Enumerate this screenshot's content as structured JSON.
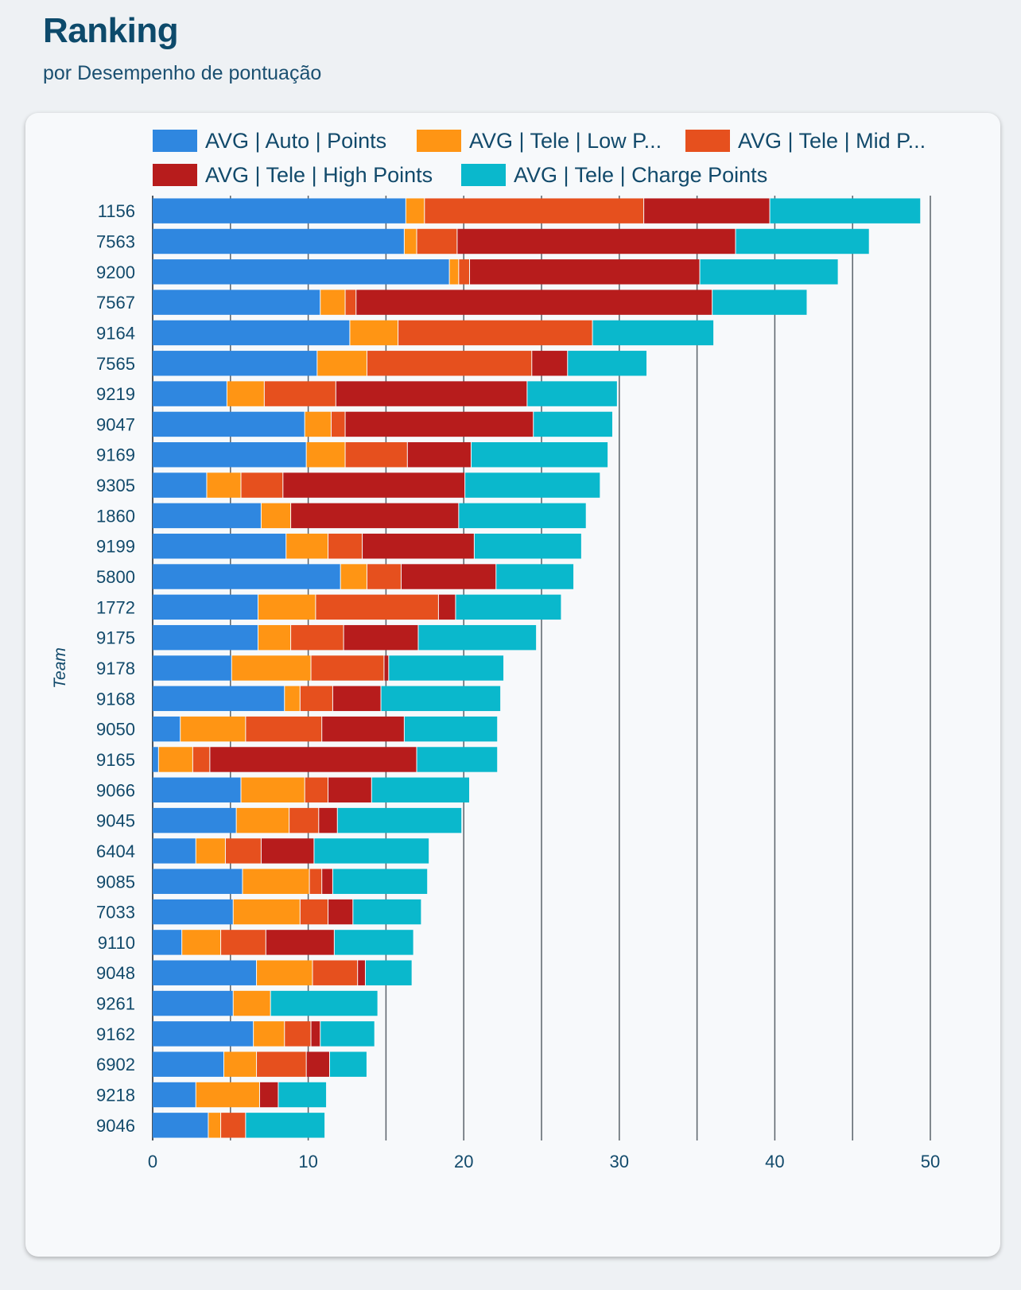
{
  "header": {
    "title": "Ranking",
    "subtitle": "por Desempenho de pontuação"
  },
  "legend": {
    "items": [
      {
        "label": "AVG | Auto | Points",
        "color": "#2f87e0"
      },
      {
        "label": "AVG | Tele | Low P...",
        "color": "#ff9514"
      },
      {
        "label": "AVG | Tele | Mid P...",
        "color": "#e6501e"
      },
      {
        "label": "AVG | Tele | High Points",
        "color": "#b71c1c"
      },
      {
        "label": "AVG | Tele | Charge Points",
        "color": "#0ab8cc"
      }
    ]
  },
  "chart_data": {
    "type": "bar",
    "orientation": "horizontal",
    "stacked": true,
    "title": "",
    "xlabel": "",
    "ylabel": "Team",
    "xlim": [
      0,
      50
    ],
    "x_ticks": [
      0,
      10,
      20,
      30,
      40,
      50
    ],
    "grid": "vertical gridlines at every 5 units",
    "legend_position": "top",
    "categories": [
      "1156",
      "7563",
      "9200",
      "7567",
      "9164",
      "7565",
      "9219",
      "9047",
      "9169",
      "9305",
      "1860",
      "9199",
      "5800",
      "1772",
      "9175",
      "9178",
      "9168",
      "9050",
      "9165",
      "9066",
      "9045",
      "6404",
      "9085",
      "7033",
      "9110",
      "9048",
      "9261",
      "9162",
      "6902",
      "9218",
      "9046"
    ],
    "series": [
      {
        "name": "AVG | Auto | Points",
        "color": "#2f87e0",
        "values": [
          16.3,
          16.2,
          19.1,
          10.8,
          12.7,
          10.6,
          4.8,
          9.8,
          9.9,
          3.5,
          7.0,
          8.6,
          12.1,
          6.8,
          6.8,
          5.1,
          8.5,
          1.8,
          0.4,
          5.7,
          5.4,
          2.8,
          5.8,
          5.2,
          1.9,
          6.7,
          5.2,
          6.5,
          4.6,
          2.8,
          3.6
        ]
      },
      {
        "name": "AVG | Tele | Low P...",
        "color": "#ff9514",
        "values": [
          1.2,
          0.8,
          0.6,
          1.6,
          3.1,
          3.2,
          2.4,
          1.7,
          2.5,
          2.2,
          1.9,
          2.7,
          1.7,
          3.7,
          2.1,
          5.1,
          1.0,
          4.2,
          2.2,
          4.1,
          3.4,
          1.9,
          4.3,
          4.3,
          2.5,
          3.6,
          2.4,
          2.0,
          2.1,
          4.1,
          0.8
        ]
      },
      {
        "name": "AVG | Tele | Mid P...",
        "color": "#e6501e",
        "values": [
          14.1,
          2.6,
          0.7,
          0.7,
          12.5,
          10.6,
          4.6,
          0.9,
          4.0,
          2.7,
          0.0,
          2.2,
          2.2,
          7.9,
          3.4,
          4.7,
          2.1,
          4.9,
          1.1,
          1.5,
          1.9,
          2.3,
          0.8,
          1.8,
          2.9,
          2.9,
          0.0,
          1.7,
          3.2,
          0.0,
          1.6
        ]
      },
      {
        "name": "AVG | Tele | High Points",
        "color": "#b71c1c",
        "values": [
          8.1,
          17.9,
          14.8,
          22.9,
          0.0,
          2.3,
          12.3,
          12.1,
          4.1,
          11.7,
          10.8,
          7.2,
          6.1,
          1.1,
          4.8,
          0.3,
          3.1,
          5.3,
          13.3,
          2.8,
          1.2,
          3.4,
          0.7,
          1.6,
          4.4,
          0.5,
          0.0,
          0.6,
          1.5,
          1.2,
          0.0
        ]
      },
      {
        "name": "AVG | Tele | Charge Points",
        "color": "#0ab8cc",
        "values": [
          9.7,
          8.6,
          8.9,
          6.1,
          7.8,
          5.1,
          5.8,
          5.1,
          8.8,
          8.7,
          8.2,
          6.9,
          5.0,
          6.8,
          7.6,
          7.4,
          7.7,
          6.0,
          5.2,
          6.3,
          8.0,
          7.4,
          6.1,
          4.4,
          5.1,
          3.0,
          6.9,
          3.5,
          2.4,
          3.1,
          5.1
        ]
      }
    ]
  }
}
